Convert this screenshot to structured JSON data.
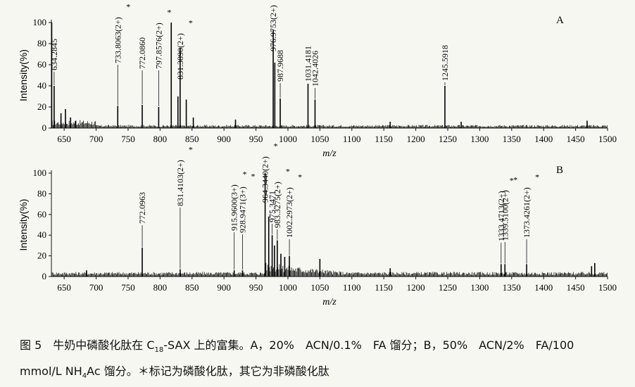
{
  "chart_data": [
    {
      "type": "line",
      "panel_label": "A",
      "xlabel": "m/z",
      "ylabel": "Intensity(%)",
      "xlim": [
        630,
        1500
      ],
      "ylim": [
        0,
        100
      ],
      "xticks": [
        650,
        700,
        750,
        800,
        850,
        900,
        950,
        1000,
        1050,
        1100,
        1150,
        1200,
        1250,
        1300,
        1350,
        1400,
        1450,
        1500
      ],
      "yticks": [
        0,
        20,
        40,
        60,
        80,
        100
      ],
      "peaks": [
        {
          "x": 630.5,
          "y": 100
        },
        {
          "x": 634.28,
          "y": 40
        },
        {
          "x": 645,
          "y": 14
        },
        {
          "x": 652,
          "y": 18
        },
        {
          "x": 660,
          "y": 10
        },
        {
          "x": 668,
          "y": 7
        },
        {
          "x": 733.81,
          "y": 21
        },
        {
          "x": 772.09,
          "y": 22
        },
        {
          "x": 797.86,
          "y": 20
        },
        {
          "x": 817.5,
          "y": 100
        },
        {
          "x": 828,
          "y": 30
        },
        {
          "x": 831.39,
          "y": 76
        },
        {
          "x": 841,
          "y": 27
        },
        {
          "x": 852,
          "y": 10
        },
        {
          "x": 918,
          "y": 8
        },
        {
          "x": 976.98,
          "y": 93
        },
        {
          "x": 979.5,
          "y": 62
        },
        {
          "x": 987.97,
          "y": 28
        },
        {
          "x": 1031.42,
          "y": 42
        },
        {
          "x": 1042.4,
          "y": 27
        },
        {
          "x": 1160,
          "y": 6
        },
        {
          "x": 1245.59,
          "y": 40
        },
        {
          "x": 1271,
          "y": 6
        },
        {
          "x": 1468,
          "y": 7
        }
      ],
      "labels": [
        {
          "text": "634.2845",
          "x": 634.28,
          "star": false
        },
        {
          "text": "733.8063(2+)",
          "x": 733.81,
          "star": true
        },
        {
          "text": "772.0860",
          "x": 772.09,
          "star": false
        },
        {
          "text": "797.8576(2+)",
          "x": 797.86,
          "star": true
        },
        {
          "text": "831.3890(2+)",
          "x": 831.39,
          "star": true
        },
        {
          "text": "976.9753(2+)",
          "x": 976.98,
          "star": true
        },
        {
          "text": "987.9688",
          "x": 987.97,
          "star": false
        },
        {
          "text": "1031.4181",
          "x": 1031.42,
          "star": false
        },
        {
          "text": "1042.4026",
          "x": 1042.4,
          "star": false
        },
        {
          "text": "1245.5918",
          "x": 1245.59,
          "star": false
        }
      ]
    },
    {
      "type": "line",
      "panel_label": "B",
      "xlabel": "m/z",
      "ylabel": "Intensity(%)",
      "xlim": [
        630,
        1500
      ],
      "ylim": [
        0,
        100
      ],
      "xticks": [
        650,
        700,
        750,
        800,
        850,
        900,
        950,
        1000,
        1050,
        1100,
        1150,
        1200,
        1250,
        1300,
        1350,
        1400,
        1450,
        1500
      ],
      "yticks": [
        0,
        20,
        40,
        60,
        80,
        100
      ],
      "peaks": [
        {
          "x": 685,
          "y": 6
        },
        {
          "x": 772.1,
          "y": 28
        },
        {
          "x": 831.41,
          "y": 7
        },
        {
          "x": 915.96,
          "y": 6
        },
        {
          "x": 928.95,
          "y": 6
        },
        {
          "x": 964.34,
          "y": 100
        },
        {
          "x": 970,
          "y": 58
        },
        {
          "x": 975.35,
          "y": 40
        },
        {
          "x": 979,
          "y": 30
        },
        {
          "x": 983.33,
          "y": 35
        },
        {
          "x": 989,
          "y": 22
        },
        {
          "x": 995,
          "y": 19
        },
        {
          "x": 1002.3,
          "y": 20
        },
        {
          "x": 1050,
          "y": 17
        },
        {
          "x": 1160,
          "y": 8
        },
        {
          "x": 1333.47,
          "y": 12
        },
        {
          "x": 1339.51,
          "y": 12
        },
        {
          "x": 1373.43,
          "y": 12
        },
        {
          "x": 1475,
          "y": 10
        },
        {
          "x": 1480,
          "y": 13
        }
      ],
      "labels": [
        {
          "text": "772.0963",
          "x": 772.1,
          "star": false
        },
        {
          "text": "831.4103(2+)",
          "x": 831.41,
          "star": true
        },
        {
          "text": "915.9600(3+)",
          "x": 915.96,
          "star": true
        },
        {
          "text": "928.9471(3+)",
          "x": 928.95,
          "star": true
        },
        {
          "text": "964.3440(2+)",
          "x": 964.34,
          "star": true
        },
        {
          "text": "975.3471",
          "x": 975.35,
          "star": false
        },
        {
          "text": "983.3275(2+)",
          "x": 983.33,
          "star": true
        },
        {
          "text": "1002.2973(2+)",
          "x": 1002.3,
          "star": true
        },
        {
          "text": "1333.4713(2+)",
          "x": 1333.47,
          "star": true
        },
        {
          "text": "1339.5100(2+)",
          "x": 1339.51,
          "star": true
        },
        {
          "text": "1373.4261(2+)",
          "x": 1373.43,
          "star": true
        }
      ]
    }
  ],
  "caption": {
    "line1_pre": "图 5　牛奶中磷酸化肽在 C",
    "line1_sub": "18",
    "line1_post": "-SAX 上的富集。A，20%　ACN/0.1%　FA 馏分；B，50%　ACN/2%　FA/100",
    "line2_pre": "mmol/L NH",
    "line2_sub": "4",
    "line2_post": "Ac 馏分。＊标记为磷酸化肽，其它为非磷酸化肽"
  }
}
